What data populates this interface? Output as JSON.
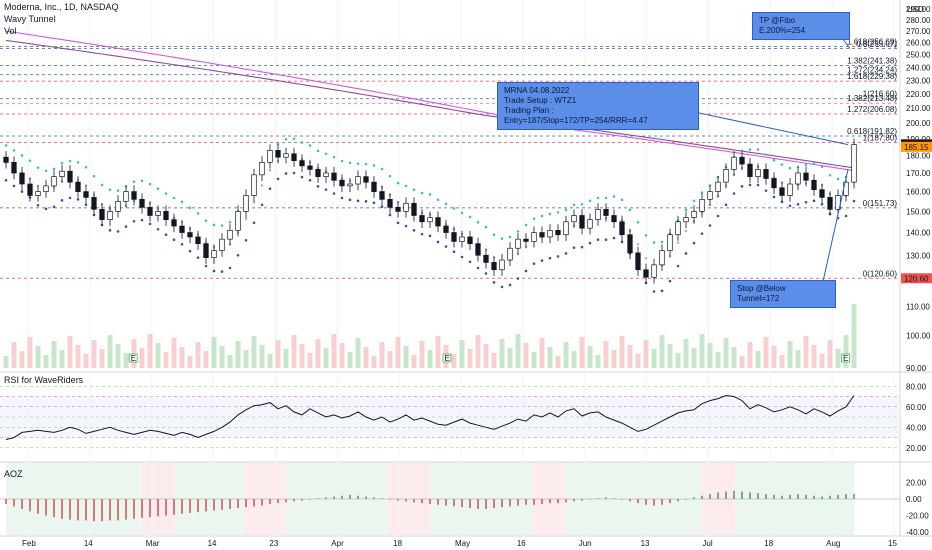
{
  "header": {
    "symbol_line": "Moderna, Inc., 1D, NASDAQ",
    "indicator_1": "Wavy Tunnel",
    "indicator_2": "Vol"
  },
  "currency_label": "USD",
  "rsi_panel_label": "RSI for WaveRiders",
  "aoz_panel_label": "AOZ",
  "chart_data": [
    {
      "type": "line",
      "title": "Moderna, Inc., 1D, NASDAQ",
      "scale": "log",
      "ylim": [
        90,
        295
      ],
      "y_ticks": [
        90,
        100,
        110,
        120,
        130,
        140,
        150,
        160,
        170,
        180,
        190,
        200,
        210,
        220,
        230,
        240,
        250,
        260,
        270,
        280,
        290
      ],
      "x_labels": [
        "Feb",
        "14",
        "Mar",
        "14",
        "23",
        "Apr",
        "18",
        "May",
        "16",
        "Jun",
        "13",
        "Jul",
        "18",
        "Aug",
        "15"
      ],
      "price_labels": [
        {
          "text": "186.83",
          "value": 186.83,
          "color": "#ef5350"
        },
        {
          "text": "186.49",
          "value": 186.49,
          "color": "#131722"
        },
        {
          "text": "185.15",
          "value": 185.15,
          "color": "#ff9800"
        },
        {
          "text": "120.60",
          "value": 120.6,
          "color": "#ef5350"
        }
      ],
      "close_series": [
        176,
        170,
        164,
        158,
        160,
        163,
        168,
        171,
        165,
        160,
        157,
        151,
        146,
        150,
        155,
        160,
        156,
        152,
        148,
        150,
        146,
        143,
        140,
        138,
        135,
        129,
        132,
        137,
        141,
        150,
        158,
        169,
        176,
        183,
        179,
        181,
        177,
        174,
        172,
        168,
        170,
        166,
        163,
        164,
        168,
        165,
        160,
        156,
        152,
        150,
        154,
        148,
        145,
        147,
        143,
        140,
        136,
        138,
        135,
        130,
        127,
        124,
        128,
        133,
        137,
        136,
        140,
        138,
        141,
        139,
        145,
        148,
        142,
        146,
        151,
        148,
        145,
        139,
        131,
        124,
        121,
        126,
        132,
        139,
        145,
        147,
        150,
        156,
        160,
        165,
        172,
        179,
        175,
        168,
        172,
        167,
        162,
        158,
        164,
        170,
        166,
        161,
        157,
        151,
        158,
        165,
        186.49
      ],
      "wavy_tunnel_levels": [
        {
          "label": "1.618(256.69)",
          "value": 256.69,
          "color": "#3a5fb0"
        },
        {
          "label": "0.8(255.07)",
          "value": 255.07,
          "color": "#3a5fb0"
        },
        {
          "label": "1.382(241.38)",
          "value": 241.38,
          "color": "#3a5fb0"
        },
        {
          "label": "1.272(234.24)",
          "value": 234.24,
          "color": "#3a5fb0"
        },
        {
          "label": "1.618(229.38)",
          "value": 229.38,
          "color": "#e0405a"
        },
        {
          "label": "1(216.60)",
          "value": 216.6,
          "color": "#3a5fb0"
        },
        {
          "label": "1.382(213.48)",
          "value": 213.48,
          "color": "#e0405a"
        },
        {
          "label": "1.272(206.08)",
          "value": 206.08,
          "color": "#e0405a"
        },
        {
          "label": "0.618(191.82)",
          "value": 191.82,
          "color": "#3a5fb0"
        },
        {
          "label": "1(187.80)",
          "value": 187.8,
          "color": "#e0405a"
        },
        {
          "label": "0(151.73)",
          "value": 151.73,
          "color": "#3a5fb0"
        },
        {
          "label": "0(120.60)",
          "value": 120.6,
          "color": "#e0405a"
        }
      ],
      "callouts": [
        {
          "lines": [
            "TP @Fibo E.200%=254"
          ]
        },
        {
          "lines": [
            "MRNA 04.08.2022",
            "Trade Setup : WTZ1",
            "Trading Plan : Entry=187/Stop=172/TP=254/RRR=4.47"
          ]
        },
        {
          "lines": [
            "Stop @Below Tunnel=172"
          ]
        }
      ],
      "earnings_markers": [
        "E",
        "E",
        "E"
      ]
    },
    {
      "type": "line",
      "title": "RSI for WaveRiders",
      "ylim": [
        10,
        90
      ],
      "y_ticks": [
        20,
        40,
        60,
        80
      ],
      "y_tick_labels": [
        "20.00",
        "40.00",
        "60.00",
        "80.00"
      ],
      "values": [
        28,
        30,
        35,
        36,
        37,
        36,
        35,
        37,
        40,
        38,
        34,
        36,
        38,
        40,
        37,
        35,
        33,
        35,
        37,
        36,
        34,
        32,
        35,
        33,
        30,
        33,
        36,
        40,
        45,
        52,
        57,
        61,
        62,
        64,
        58,
        61,
        55,
        52,
        58,
        54,
        50,
        52,
        49,
        51,
        55,
        50,
        47,
        50,
        45,
        48,
        52,
        47,
        49,
        46,
        43,
        42,
        45,
        48,
        44,
        42,
        40,
        38,
        41,
        44,
        48,
        46,
        52,
        50,
        54,
        50,
        56,
        58,
        51,
        54,
        55,
        50,
        47,
        44,
        40,
        36,
        38,
        42,
        46,
        50,
        54,
        56,
        57,
        63,
        66,
        68,
        71,
        70,
        66,
        58,
        62,
        59,
        55,
        57,
        60,
        57,
        53,
        58,
        55,
        51,
        56,
        60,
        71
      ]
    },
    {
      "type": "bar",
      "title": "AOZ",
      "ylim": [
        -40,
        40
      ],
      "y_ticks": [
        -40,
        -20,
        0,
        20
      ],
      "y_tick_labels": [
        "-40.00",
        "-20.00",
        "0.00",
        "20.00"
      ],
      "values": [
        -6,
        -9,
        -12,
        -15,
        -18,
        -20,
        -22,
        -24,
        -25,
        -26,
        -26,
        -27,
        -27,
        -26,
        -26,
        -25,
        -24,
        -23,
        -22,
        -21,
        -20,
        -19,
        -18,
        -17,
        -16,
        -15,
        -14,
        -13,
        -12,
        -11,
        -10,
        -9,
        -8,
        -6,
        -5,
        -4,
        -3,
        -2,
        -1,
        1,
        2,
        3,
        4,
        5,
        4,
        3,
        2,
        1,
        -1,
        -2,
        -3,
        -4,
        -5,
        -6,
        -7,
        -8,
        -9,
        -10,
        -11,
        -12,
        -12,
        -11,
        -10,
        -9,
        -8,
        -7,
        -7,
        -6,
        -5,
        -5,
        -4,
        -3,
        -2,
        -1,
        1,
        2,
        1,
        -1,
        -3,
        -5,
        -7,
        -8,
        -7,
        -5,
        -3,
        -1,
        2,
        4,
        6,
        8,
        9,
        10,
        9,
        8,
        7,
        6,
        5,
        4,
        5,
        6,
        5,
        4,
        3,
        4,
        5,
        6,
        6
      ]
    }
  ]
}
